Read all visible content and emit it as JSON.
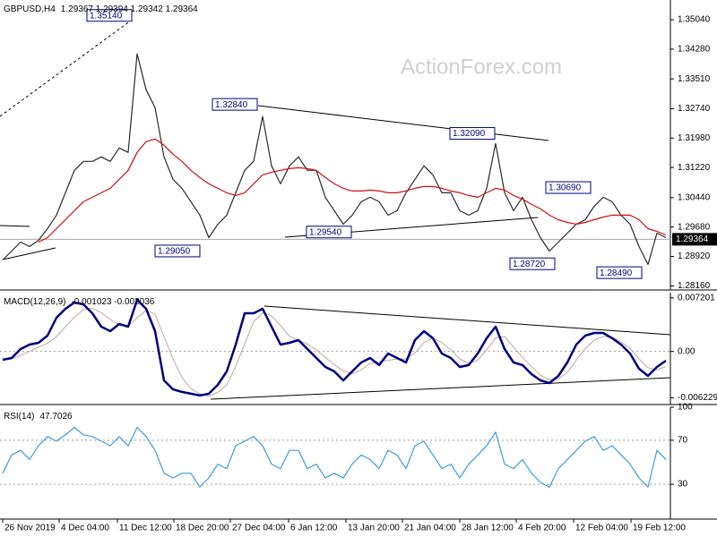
{
  "chart_data": [
    {
      "type": "line",
      "title": "GBPUSD,H4",
      "subtitle": "1.29367 1.29394 1.29342 1.29364",
      "watermark": "ActionForex.com",
      "xlim": [
        -0.3,
        74.5
      ],
      "ylim": [
        1.281,
        1.3555
      ],
      "yticks": [
        {
          "value": 1.3504,
          "label": "1.35040"
        },
        {
          "value": 1.3428,
          "label": "1.34280"
        },
        {
          "value": 1.3351,
          "label": "1.33510"
        },
        {
          "value": 1.3274,
          "label": "1.32740"
        },
        {
          "value": 1.3198,
          "label": "1.31980"
        },
        {
          "value": 1.3122,
          "label": "1.31220"
        },
        {
          "value": 1.3044,
          "label": "1.30440"
        },
        {
          "value": 1.2968,
          "label": "1.29680"
        },
        {
          "value": 1.2892,
          "label": "1.28920"
        },
        {
          "value": 1.2816,
          "label": "1.28160"
        }
      ],
      "x": [
        0,
        1,
        2,
        3,
        4,
        5,
        6,
        7,
        8,
        9,
        10,
        11,
        12,
        13,
        14,
        15,
        16,
        17,
        18,
        19,
        20,
        21,
        22,
        23,
        24,
        25,
        26,
        27,
        28,
        29,
        30,
        31,
        32,
        33,
        34,
        35,
        36,
        37,
        38,
        39,
        40,
        41,
        42,
        43,
        44,
        45,
        46,
        47,
        48,
        49,
        50,
        51,
        52,
        53,
        54,
        55,
        56,
        57,
        58,
        59,
        60,
        61,
        62,
        63,
        64,
        65,
        66,
        67,
        68,
        69,
        70,
        71,
        72,
        73,
        74
      ],
      "series": [
        {
          "color": "#2a2a2a",
          "width": 1.2,
          "values": [
            1.28828,
            1.2906,
            1.29291,
            1.29175,
            1.29338,
            1.29639,
            1.29987,
            1.30566,
            1.31146,
            1.31378,
            1.31378,
            1.31493,
            1.31378,
            1.31725,
            1.31609,
            1.34159,
            1.33232,
            1.32768,
            1.31493,
            1.30914,
            1.30682,
            1.30334,
            1.29987,
            1.29407,
            1.29755,
            1.29987,
            1.30566,
            1.31146,
            1.31378,
            1.32537,
            1.31262,
            1.30798,
            1.31262,
            1.31493,
            1.31146,
            1.31146,
            1.3045,
            1.30103,
            1.29755,
            1.29987,
            1.30334,
            1.3045,
            1.30334,
            1.29987,
            1.30103,
            1.30566,
            1.30914,
            1.31262,
            1.3103,
            1.30566,
            1.30566,
            1.30103,
            1.29987,
            1.30103,
            1.30682,
            1.31841,
            1.30566,
            1.30103,
            1.3045,
            1.29871,
            1.29407,
            1.2906,
            1.29291,
            1.29523,
            1.29755,
            1.29871,
            1.30219,
            1.3045,
            1.30334,
            1.29987,
            1.29755,
            1.29175,
            1.28712,
            1.29523,
            1.29407
          ]
        },
        {
          "color": "#d01010",
          "width": 1.2,
          "values": [
            null,
            null,
            null,
            null,
            1.29291,
            1.29407,
            1.29639,
            1.29871,
            1.30103,
            1.30334,
            1.3045,
            1.30566,
            1.30682,
            1.30914,
            1.31146,
            1.31609,
            1.31888,
            1.31957,
            1.31795,
            1.31563,
            1.31378,
            1.31146,
            1.3096,
            1.30798,
            1.30682,
            1.30566,
            1.30497,
            1.30566,
            1.30798,
            1.3103,
            1.31099,
            1.31146,
            1.31192,
            1.31215,
            1.31192,
            1.31146,
            1.3096,
            1.30798,
            1.30682,
            1.30613,
            1.30613,
            1.30636,
            1.30613,
            1.30566,
            1.30566,
            1.30613,
            1.30682,
            1.30729,
            1.30729,
            1.30682,
            1.30613,
            1.30566,
            1.30497,
            1.3045,
            1.30566,
            1.30682,
            1.30636,
            1.30497,
            1.30404,
            1.30265,
            1.30149,
            1.29987,
            1.29871,
            1.29801,
            1.29755,
            1.29801,
            1.29871,
            1.2994,
            1.29987,
            1.29987,
            1.29987,
            1.29871,
            1.29639,
            1.2957,
            1.29477
          ]
        }
      ],
      "annotations": [
        {
          "x": 9.4,
          "value": 1.3514,
          "label": "1.35140"
        },
        {
          "x": 23.4,
          "value": 1.3284,
          "label": "1.32840"
        },
        {
          "x": 49.9,
          "value": 1.3209,
          "label": "1.32090"
        },
        {
          "x": 60.6,
          "value": 1.3069,
          "label": "1.30690"
        },
        {
          "x": 33.9,
          "value": 1.2954,
          "label": "1.29540"
        },
        {
          "x": 17,
          "value": 1.2905,
          "label": "1.29050"
        },
        {
          "x": 56.6,
          "value": 1.2872,
          "label": "1.28720"
        },
        {
          "x": 66.3,
          "value": 1.2849,
          "label": "1.28490"
        }
      ],
      "last_price": {
        "value": 1.29364,
        "label": "1.29364"
      }
    },
    {
      "type": "line",
      "title": "MACD(12,26,9)",
      "subtitle": "-0.001023 -0.002036",
      "xlim": [
        -0.3,
        74.5
      ],
      "ylim": [
        -0.0069,
        0.0079
      ],
      "yticks": [
        {
          "value": 0.007201,
          "label": "0.007201"
        },
        {
          "value": 0,
          "label": "0.00"
        },
        {
          "value": -0.006229,
          "label": "-0.006229"
        }
      ],
      "levels": [
        0
      ],
      "x": [
        0,
        1,
        2,
        3,
        4,
        5,
        6,
        7,
        8,
        9,
        10,
        11,
        12,
        13,
        14,
        15,
        16,
        17,
        18,
        19,
        20,
        21,
        22,
        23,
        24,
        25,
        26,
        27,
        28,
        29,
        30,
        31,
        32,
        33,
        34,
        35,
        36,
        37,
        38,
        39,
        40,
        41,
        42,
        43,
        44,
        45,
        46,
        47,
        48,
        49,
        50,
        51,
        52,
        53,
        54,
        55,
        56,
        57,
        58,
        59,
        60,
        61,
        62,
        63,
        64,
        65,
        66,
        67,
        68,
        69,
        70,
        71,
        72,
        73,
        74
      ],
      "series": [
        {
          "color": "#c4a4a4",
          "width": 1,
          "values": [
            -0.001,
            -0.001,
            -0.0005,
            0,
            0.0006,
            0.0011,
            0.002,
            0.0033,
            0.0046,
            0.0056,
            0.0058,
            0.0052,
            0.0043,
            0.0036,
            0.0034,
            0.0045,
            0.0055,
            0.005,
            0.002,
            -0.001,
            -0.0035,
            -0.005,
            -0.0057,
            -0.006,
            -0.0055,
            -0.0045,
            -0.002,
            0.001,
            0.004,
            0.0052,
            0.0048,
            0.0035,
            0.002,
            0.0015,
            0.001,
            0.0002,
            -0.0008,
            -0.0018,
            -0.0026,
            -0.003,
            -0.0025,
            -0.0016,
            -0.0014,
            -0.0012,
            -0.001,
            -0.001,
            -0.0002,
            0.0012,
            0.0018,
            0.0012,
            0.0002,
            -0.001,
            -0.0016,
            -0.0012,
            0.0002,
            0.0018,
            0.002,
            0.0006,
            -0.0008,
            -0.002,
            -0.0032,
            -0.0038,
            -0.0037,
            -0.0028,
            -0.0012,
            0.0004,
            0.0015,
            0.002,
            0.0019,
            0.0013,
            0.0004,
            -0.001,
            -0.0022,
            -0.0025,
            -0.002
          ]
        },
        {
          "color": "#000080",
          "width": 2.5,
          "values": [
            -0.00112,
            -0.00088,
            0.00032,
            0.00092,
            0.00116,
            0.00213,
            0.00453,
            0.00574,
            0.00658,
            0.00634,
            0.00513,
            0.00333,
            0.00273,
            0.00369,
            0.00333,
            0.00694,
            0.00574,
            0.00273,
            -0.00389,
            -0.00509,
            -0.00545,
            -0.00569,
            -0.00593,
            -0.00569,
            -0.00449,
            -0.00269,
            0.00092,
            0.00513,
            0.00513,
            0.00574,
            0.00333,
            0.00092,
            0.00116,
            0.00152,
            0.00032,
            -0.00088,
            -0.00209,
            -0.00269,
            -0.00389,
            -0.00269,
            -0.00148,
            -0.00088,
            -0.00184,
            -0.00028,
            -0.00088,
            -0.00148,
            0.00152,
            0.00273,
            0.00177,
            -0.00028,
            -0.00088,
            -0.00209,
            -0.00184,
            -0.00028,
            0.00177,
            0.00333,
            0.00032,
            -0.00148,
            -0.00184,
            -0.00305,
            -0.00389,
            -0.00425,
            -0.00329,
            -0.00148,
            0.00092,
            0.00213,
            0.00249,
            0.00249,
            0.00177,
            0.00092,
            -0.00028,
            -0.00233,
            -0.00329,
            -0.00209,
            -0.00124
          ]
        }
      ]
    },
    {
      "type": "line",
      "title": "RSI(14)",
      "subtitle": "47.7026",
      "xlim": [
        -0.3,
        74.5
      ],
      "ylim": [
        0,
        100
      ],
      "yticks": [
        100,
        70,
        30
      ],
      "levels": [
        70,
        30
      ],
      "xticks": [
        {
          "value": 0,
          "label": "26 Nov 2019"
        },
        {
          "value": 6.3,
          "label": "4 Dec 04:00"
        },
        {
          "value": 12.8,
          "label": "11 Dec 12:00"
        },
        {
          "value": 19.1,
          "label": "18 Dec 20:00"
        },
        {
          "value": 25.4,
          "label": "27 Dec 04:00"
        },
        {
          "value": 31.9,
          "label": "6 Jan 12:00"
        },
        {
          "value": 38.3,
          "label": "13 Jan 20:00"
        },
        {
          "value": 44.6,
          "label": "21 Jan 04:00"
        },
        {
          "value": 51,
          "label": "28 Jan 12:00"
        },
        {
          "value": 57.3,
          "label": "4 Feb 20:00"
        },
        {
          "value": 63.7,
          "label": "12 Feb 04:00"
        },
        {
          "value": 70.1,
          "label": "19 Feb 12:00"
        }
      ],
      "x": [
        0,
        1,
        2,
        3,
        4,
        5,
        6,
        7,
        8,
        9,
        10,
        11,
        12,
        13,
        14,
        15,
        16,
        17,
        18,
        19,
        20,
        21,
        22,
        23,
        24,
        25,
        26,
        27,
        28,
        29,
        30,
        31,
        32,
        33,
        34,
        35,
        36,
        37,
        38,
        39,
        40,
        41,
        42,
        43,
        44,
        45,
        46,
        47,
        48,
        49,
        50,
        51,
        52,
        53,
        54,
        55,
        56,
        57,
        58,
        59,
        60,
        61,
        62,
        63,
        64,
        65,
        66,
        67,
        68,
        69,
        70,
        71,
        72,
        73,
        74
      ],
      "series": [
        {
          "color": "#3b9be0",
          "width": 1.2,
          "values": [
            40,
            56.7,
            60.8,
            52.5,
            65,
            73.3,
            69.2,
            75,
            81.7,
            75,
            73.3,
            69.2,
            65,
            73.3,
            65,
            81.7,
            73.3,
            60.8,
            40,
            35.8,
            40,
            40,
            27.5,
            35.8,
            48.3,
            44.2,
            65,
            69.2,
            73.3,
            65,
            48.3,
            44.2,
            60.8,
            60.8,
            44.2,
            48.3,
            35.8,
            40,
            35.8,
            48.3,
            56.7,
            52.5,
            44.2,
            60.8,
            56.7,
            44.2,
            65,
            69.2,
            56.7,
            44.2,
            48.3,
            35.8,
            48.3,
            56.7,
            65,
            77.5,
            48.3,
            44.2,
            52.5,
            40,
            31.7,
            27.5,
            44.2,
            52.5,
            60.8,
            69.2,
            73.3,
            60.8,
            65,
            56.7,
            48.3,
            35.8,
            27.5,
            60.8,
            52.5
          ]
        }
      ]
    }
  ]
}
